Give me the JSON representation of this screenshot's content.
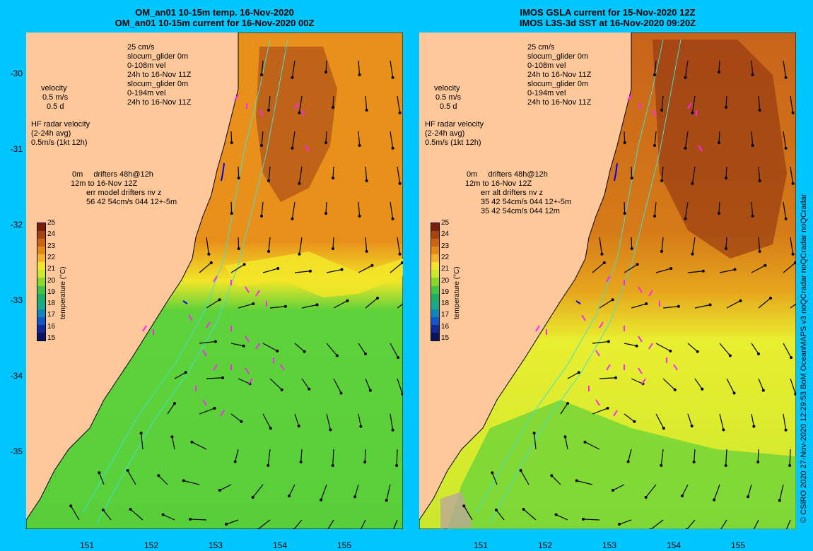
{
  "left": {
    "title1": "OM_an01 10-15m temp. 16-Nov-2020",
    "title2": "OM_an01 10-15m current for 16-Nov-2020 00Z",
    "legend_lines": [
      "25 cm/s",
      "slocum_glider 0m",
      "0-108m vel",
      "24h to 16-Nov 11Z",
      "slocum_glider 0m",
      "0-194m vel",
      "24h to 16-Nov 11Z"
    ],
    "velocity": [
      "velocity",
      "0.5 m/s",
      "0.5 d"
    ],
    "hf": [
      "HF radar velocity",
      "(2-24h avg)",
      "0.5m/s (1kt 12h)"
    ],
    "drifters": [
      "0m",
      "drifters 48h@12h",
      "12m",
      "to 16-Nov 12Z",
      "err model drifters nv z",
      "56 42 54cm/s 044 12+-5m"
    ]
  },
  "right": {
    "title1": "IMOS GSLA current for 15-Nov-2020 12Z",
    "title2": "IMOS L3S-3d SST at 16-Nov-2020 09:20Z",
    "legend_lines": [
      "25 cm/s",
      "slocum_glider 0m",
      "0-108m vel",
      "24h to 16-Nov 11Z",
      "slocum_glider 0m",
      "0-194m vel",
      "24h to 16-Nov 11Z"
    ],
    "velocity": [
      "velocity",
      "0.5 m/s",
      "0.5 d"
    ],
    "hf": [
      "HF radar velocity",
      "(2-24h avg)",
      "0.5m/s (1kt 12h)"
    ],
    "drifters": [
      "0m",
      "drifters 48h@12h",
      "12m",
      "to 16-Nov 12Z",
      "err alt drifters nv z",
      "35 42 54cm/s 044 12+-5m",
      "35 42 54cm/s 044 12m"
    ]
  },
  "colorbar": {
    "title": "temperature (°C)",
    "ticks": [
      "25",
      "24",
      "23",
      "22",
      "21",
      "20",
      "19",
      "18",
      "17",
      "16",
      "15"
    ],
    "colors": [
      "#7a1f0a",
      "#a44412",
      "#cc6614",
      "#e58a17",
      "#f5b22b",
      "#f3e628",
      "#cdea2a",
      "#8bd62a",
      "#44c244",
      "#1fae66",
      "#16a98a",
      "#1386b8",
      "#1455c8",
      "#112a9a",
      "#0a1460"
    ]
  },
  "lat_labels": [
    "-30",
    "-31",
    "-32",
    "-33",
    "-34",
    "-35"
  ],
  "lon_labels": [
    "151",
    "152",
    "153",
    "154",
    "155"
  ],
  "credit": "© CSIRO 2020    27-Nov-2020 12:29:53 BoM OceanMAPS v3 noQCradar noQCradar noQCradar",
  "colors": {
    "background": "#00c6ff",
    "land": "#ffc89a",
    "coast": "#000000",
    "drifter": "#ff22ff",
    "glider": "#0000ff",
    "isobath": "#40e0d0"
  }
}
